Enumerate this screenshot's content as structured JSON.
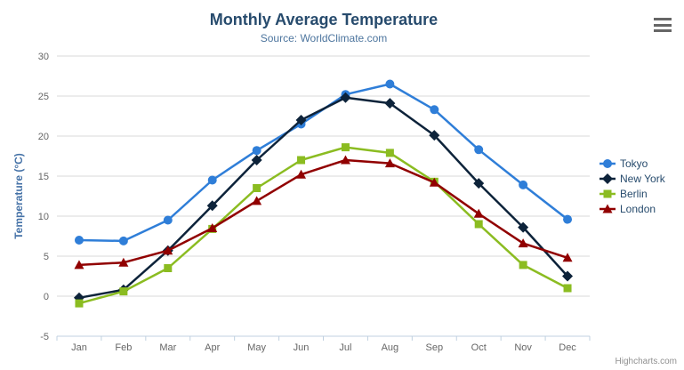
{
  "header": {
    "title": "Monthly Average Temperature",
    "subtitle": "Source: WorldClimate.com"
  },
  "export_menu": {
    "icon": "hamburger-icon"
  },
  "credits": {
    "label": "Highcharts.com"
  },
  "colors": {
    "title": "#274b6d",
    "subtitle": "#4d759e",
    "axis_label": "#666666",
    "yaxis_title": "#4572a7",
    "gridline": "#d8d8d8",
    "axis_line": "#c0d0e0",
    "legend_text": "#274b6d",
    "credits_text": "#909090"
  },
  "chart_data": {
    "type": "line",
    "title": "Monthly Average Temperature",
    "subtitle": "Source: WorldClimate.com",
    "categories": [
      "Jan",
      "Feb",
      "Mar",
      "Apr",
      "May",
      "Jun",
      "Jul",
      "Aug",
      "Sep",
      "Oct",
      "Nov",
      "Dec"
    ],
    "xlabel": "",
    "ylabel": "Temperature (°C)",
    "ylim": [
      -5,
      30
    ],
    "ytick_step": 5,
    "yticks": [
      -5,
      0,
      5,
      10,
      15,
      20,
      25,
      30
    ],
    "grid": true,
    "legend_position": "right",
    "series": [
      {
        "name": "Tokyo",
        "color": "#2f7ed8",
        "marker": "circle",
        "values": [
          7.0,
          6.9,
          9.5,
          14.5,
          18.2,
          21.5,
          25.2,
          26.5,
          23.3,
          18.3,
          13.9,
          9.6
        ]
      },
      {
        "name": "New York",
        "color": "#0d233a",
        "marker": "diamond",
        "values": [
          -0.2,
          0.8,
          5.7,
          11.3,
          17.0,
          22.0,
          24.8,
          24.1,
          20.1,
          14.1,
          8.6,
          2.5
        ]
      },
      {
        "name": "Berlin",
        "color": "#8bbc21",
        "marker": "square",
        "values": [
          -0.9,
          0.6,
          3.5,
          8.4,
          13.5,
          17.0,
          18.6,
          17.9,
          14.3,
          9.0,
          3.9,
          1.0
        ]
      },
      {
        "name": "London",
        "color": "#910000",
        "marker": "triangle",
        "values": [
          3.9,
          4.2,
          5.7,
          8.5,
          11.9,
          15.2,
          17.0,
          16.6,
          14.2,
          10.3,
          6.6,
          4.8
        ]
      }
    ]
  }
}
